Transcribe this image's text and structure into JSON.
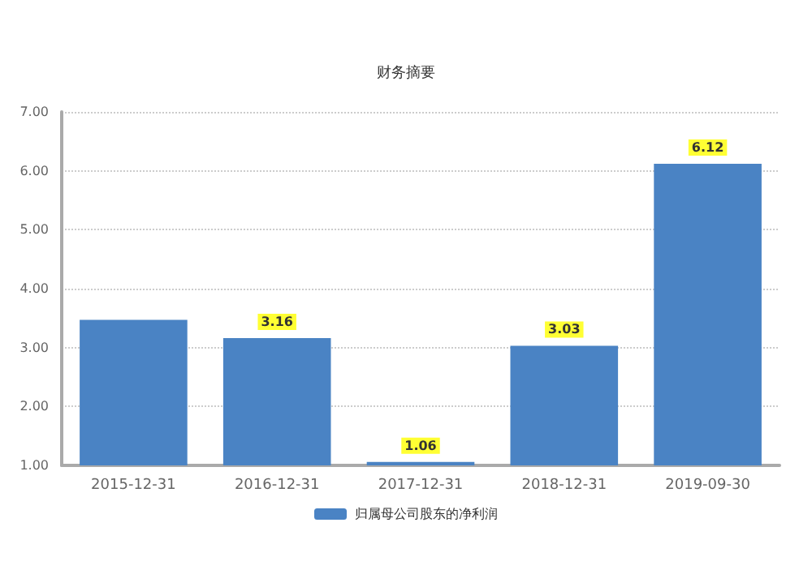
{
  "chart_data": {
    "type": "bar",
    "title": "财务摘要",
    "categories": [
      "2015-12-31",
      "2016-12-31",
      "2017-12-31",
      "2018-12-31",
      "2019-09-30"
    ],
    "series": [
      {
        "name": "归属母公司股东的净利润",
        "color": "#4a83c4",
        "values": [
          3.47,
          3.16,
          1.06,
          3.03,
          6.12
        ],
        "value_labels": [
          null,
          "3.16",
          "1.06",
          "3.03",
          "6.12"
        ]
      }
    ],
    "ylim": [
      1,
      7
    ],
    "yticks": [
      {
        "value": 1,
        "label": "1.00"
      },
      {
        "value": 2,
        "label": "2.00"
      },
      {
        "value": 3,
        "label": "3.00"
      },
      {
        "value": 4,
        "label": "4.00"
      },
      {
        "value": 5,
        "label": "5.00"
      },
      {
        "value": 6,
        "label": "6.00"
      },
      {
        "value": 7,
        "label": "7.00"
      }
    ],
    "grid": "y",
    "legend": "bottom"
  }
}
